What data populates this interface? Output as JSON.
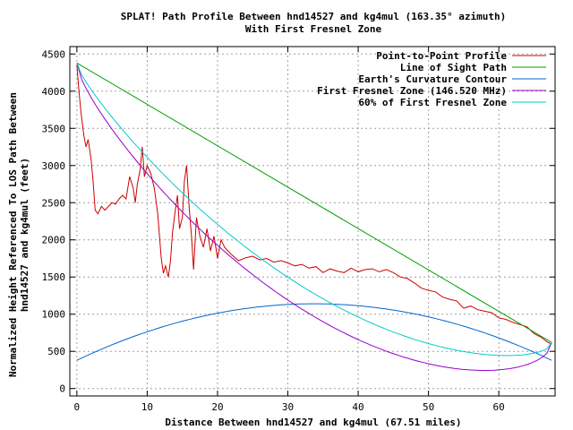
{
  "chart_data": {
    "type": "line",
    "title": "SPLAT! Path Profile Between hnd14527 and kg4mul (163.35° azimuth)",
    "subtitle": "With First Fresnel Zone",
    "xlabel": "Distance Between hnd14527 and kg4mul (67.51 miles)",
    "ylabel_line1": "Normalized Height Referenced To LOS Path Between",
    "ylabel_line2": "hnd14527 and kg4mul (feet)",
    "xlim": [
      -1,
      68
    ],
    "ylim": [
      -100,
      4600
    ],
    "x_ticks": [
      0,
      10,
      20,
      30,
      40,
      50,
      60
    ],
    "y_ticks": [
      0,
      500,
      1000,
      1500,
      2000,
      2500,
      3000,
      3500,
      4000,
      4500
    ],
    "grid": true,
    "legend_position": "top-right",
    "series": [
      {
        "name": "Point-to-Point Profile",
        "color": "#cc0000",
        "x": [
          0,
          0.3,
          0.6,
          1.0,
          1.3,
          1.6,
          2.0,
          2.3,
          2.6,
          3.0,
          3.5,
          4.0,
          4.5,
          5.0,
          5.5,
          6.0,
          6.5,
          7.0,
          7.5,
          8.0,
          8.3,
          8.6,
          9.0,
          9.3,
          9.6,
          10.0,
          10.5,
          11.0,
          11.5,
          12.0,
          12.3,
          12.6,
          13.0,
          13.3,
          13.6,
          14.0,
          14.3,
          14.6,
          15.0,
          15.3,
          15.6,
          16.0,
          16.3,
          16.6,
          17.0,
          17.5,
          18.0,
          18.5,
          19.0,
          19.5,
          20.0,
          20.5,
          21.0,
          22.0,
          23.0,
          24.0,
          25.0,
          26.0,
          27.0,
          28.0,
          29.0,
          30.0,
          31.0,
          32.0,
          33.0,
          34.0,
          35.0,
          36.0,
          37.0,
          38.0,
          39.0,
          40.0,
          41.0,
          42.0,
          43.0,
          44.0,
          45.0,
          46.0,
          47.0,
          48.0,
          49.0,
          50.0,
          51.0,
          52.0,
          53.0,
          54.0,
          55.0,
          56.0,
          57.0,
          58.0,
          59.0,
          60.0,
          61.0,
          62.0,
          63.0,
          64.0,
          65.0,
          66.0,
          67.0,
          67.51
        ],
        "values": [
          4350,
          4000,
          3700,
          3400,
          3250,
          3350,
          3100,
          2800,
          2400,
          2350,
          2450,
          2400,
          2450,
          2500,
          2480,
          2550,
          2600,
          2550,
          2850,
          2700,
          2500,
          2750,
          2950,
          3250,
          2850,
          3000,
          2900,
          2700,
          2350,
          1750,
          1550,
          1650,
          1500,
          1700,
          2100,
          2400,
          2600,
          2150,
          2300,
          2800,
          3000,
          2400,
          2050,
          1600,
          2300,
          2050,
          1900,
          2150,
          1850,
          2050,
          1750,
          2000,
          1900,
          1800,
          1720,
          1760,
          1780,
          1730,
          1750,
          1700,
          1720,
          1690,
          1650,
          1670,
          1620,
          1640,
          1560,
          1610,
          1580,
          1560,
          1620,
          1570,
          1600,
          1610,
          1570,
          1600,
          1560,
          1500,
          1480,
          1420,
          1350,
          1320,
          1300,
          1230,
          1200,
          1180,
          1080,
          1110,
          1060,
          1040,
          1020,
          950,
          930,
          890,
          860,
          830,
          740,
          690,
          620,
          600
        ]
      },
      {
        "name": "Line of Sight Path",
        "color": "#00a000",
        "x": [
          0,
          67.51
        ],
        "values": [
          4380,
          620
        ]
      },
      {
        "name": "Earth's Curvature Contour",
        "color": "#0066cc",
        "curve": "parabola",
        "x": [
          0,
          33.8,
          67.51
        ],
        "values": [
          380,
          1140,
          380
        ]
      },
      {
        "name": "First Fresnel Zone (146.520 MHz)",
        "color": "#9900cc",
        "x": [
          0,
          67.51
        ],
        "values": [
          4380,
          620
        ],
        "fresnel_fraction": 1.0,
        "frequency_mhz": 146.52
      },
      {
        "name": "60% of First Fresnel Zone",
        "color": "#00cccc",
        "x": [
          0,
          67.51
        ],
        "values": [
          4380,
          620
        ],
        "fresnel_fraction": 0.6,
        "frequency_mhz": 146.52
      }
    ]
  }
}
